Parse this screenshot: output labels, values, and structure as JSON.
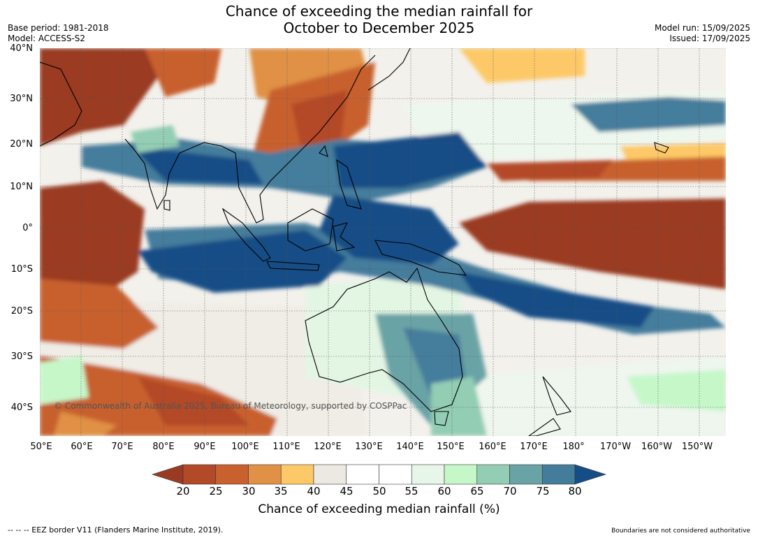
{
  "title_line1": "Chance of exceeding the median rainfall for",
  "title_line2": "October to December 2025",
  "base_period": "Base period: 1981-2018",
  "model": "Model: ACCESS-S2",
  "model_run": "Model run: 15/09/2025",
  "issued": "Issued: 17/09/2025",
  "lat_labels": [
    "40°N",
    "30°N",
    "20°N",
    "10°N",
    "0°",
    "10°S",
    "20°S",
    "30°S",
    "40°S"
  ],
  "lon_labels": [
    "50°E",
    "60°E",
    "70°E",
    "80°E",
    "90°E",
    "100°E",
    "110°E",
    "120°E",
    "130°E",
    "140°E",
    "150°E",
    "160°E",
    "170°E",
    "180°",
    "170°W",
    "160°W",
    "150°W"
  ],
  "copyright": "© Commonwealth of Australia 2025, Bureau of Meteorology, supported by COSPPac",
  "colorbar": {
    "title": "Chance of exceeding median rainfall (%)",
    "ticks": [
      "20",
      "25",
      "30",
      "35",
      "40",
      "45",
      "50",
      "55",
      "60",
      "65",
      "70",
      "75",
      "80"
    ],
    "colors": [
      "#9a3a22",
      "#b34a27",
      "#c8612e",
      "#e09145",
      "#fdc968",
      "#ece9e2",
      "#ffffff",
      "#ffffff",
      "#e8f5e9",
      "#c6f7c9",
      "#93cdb4",
      "#6aa3a6",
      "#447d9c",
      "#154d86"
    ]
  },
  "eez_note": "--  --  -- EEZ border V11 (Flanders Marine Institute, 2019).",
  "boundary_note": "Boundaries are not considered authoritative"
}
